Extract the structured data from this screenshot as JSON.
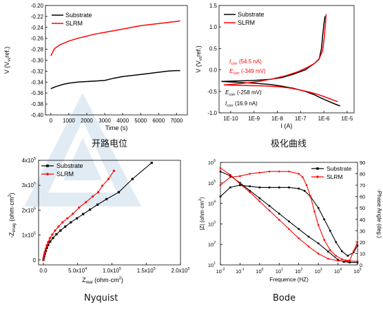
{
  "chart_data": [
    {
      "type": "line",
      "caption": "开路电位",
      "xlabel": "Time (s)",
      "ylabel": [
        "V (V",
        "ref.",
        ")",
        "vs"
      ],
      "xlim": [
        -300,
        7600
      ],
      "ylim": [
        -0.4,
        -0.2
      ],
      "xticks": [
        0,
        1000,
        2000,
        3000,
        4000,
        5000,
        6000,
        7000
      ],
      "yticks": [
        -0.4,
        -0.38,
        -0.36,
        -0.34,
        -0.32,
        -0.3,
        -0.28,
        -0.26,
        -0.24,
        -0.22,
        -0.2
      ],
      "legend_position": "top-left",
      "series": [
        {
          "name": "Substrate",
          "color": "#000000",
          "x": [
            0,
            300,
            700,
            1000,
            1500,
            2000,
            2500,
            3000,
            3500,
            4000,
            4500,
            5000,
            5500,
            6000,
            6500,
            7000,
            7200
          ],
          "y": [
            -0.352,
            -0.348,
            -0.344,
            -0.342,
            -0.34,
            -0.339,
            -0.338,
            -0.337,
            -0.333,
            -0.33,
            -0.328,
            -0.326,
            -0.324,
            -0.322,
            -0.32,
            -0.319,
            -0.319
          ]
        },
        {
          "name": "SLRM",
          "color": "#ff0000",
          "x": [
            0,
            200,
            500,
            1000,
            1500,
            2000,
            2500,
            3000,
            3500,
            4000,
            4500,
            5000,
            5500,
            6000,
            6500,
            7000,
            7200
          ],
          "y": [
            -0.292,
            -0.279,
            -0.272,
            -0.265,
            -0.26,
            -0.256,
            -0.252,
            -0.249,
            -0.246,
            -0.243,
            -0.24,
            -0.237,
            -0.235,
            -0.233,
            -0.231,
            -0.229,
            -0.228
          ]
        }
      ]
    },
    {
      "type": "line",
      "caption": "极化曲线",
      "xlabel": "I (A)",
      "ylabel": [
        "V (V",
        "ref.",
        ")",
        "vs"
      ],
      "xscale": "log",
      "xlim_exp": [
        -10.5,
        -4.7
      ],
      "ylim": [
        -1.0,
        1.5
      ],
      "xticks_exp": [
        -10,
        -9,
        -8,
        -7,
        -6,
        -5
      ],
      "xtick_labels": [
        "1E-10",
        "1E-9",
        "1E-8",
        "1E-7",
        "1E-6",
        "1E-5"
      ],
      "yticks": [
        -1.0,
        -0.5,
        0.0,
        0.5,
        1.0,
        1.5
      ],
      "ytick_labels": [
        "-1.0",
        "-0.5",
        "0.0",
        "0.5",
        "1.0",
        "1.5"
      ],
      "legend_position": "top-left",
      "annotations_red": [
        {
          "sym": "I",
          "sub": "corr",
          "val": " (54.5 nA)"
        },
        {
          "sym": "E",
          "sub": "corr",
          "val": " (-349 mV)"
        }
      ],
      "annotations_black": [
        {
          "sym": "E",
          "sub": "corr",
          "val": " (-258 mV)"
        },
        {
          "sym": "I",
          "sub": "corr",
          "val": " (16.9 nA)"
        }
      ],
      "series": [
        {
          "name": "Substrate",
          "color": "#000000",
          "x_exp": [
            -5.3,
            -5.5,
            -5.8,
            -6.1,
            -6.4,
            -6.8,
            -7.3,
            -7.8,
            -8.3,
            -9.0,
            -10.4,
            -9.0,
            -8.3,
            -7.8,
            -7.3,
            -6.8,
            -6.4,
            -6.2,
            -6.1,
            -6.05,
            -6.0,
            -5.95
          ],
          "y": [
            -0.84,
            -0.8,
            -0.73,
            -0.66,
            -0.58,
            -0.5,
            -0.43,
            -0.38,
            -0.34,
            -0.31,
            -0.27,
            -0.245,
            -0.22,
            -0.18,
            -0.1,
            0.0,
            0.15,
            0.25,
            0.5,
            0.8,
            1.05,
            1.25
          ]
        },
        {
          "name": "SLRM",
          "color": "#ff0000",
          "x_exp": [
            -5.4,
            -5.6,
            -5.9,
            -6.2,
            -6.6,
            -7.0,
            -7.5,
            -8.0,
            -8.7,
            -9.6,
            -10.3,
            -9.6,
            -8.8,
            -8.2,
            -7.6,
            -7.1,
            -6.7,
            -6.4,
            -6.2,
            -6.05,
            -5.98,
            -5.93,
            -5.9
          ],
          "y": [
            -0.74,
            -0.7,
            -0.64,
            -0.58,
            -0.52,
            -0.47,
            -0.42,
            -0.39,
            -0.37,
            -0.36,
            -0.35,
            -0.32,
            -0.27,
            -0.21,
            -0.13,
            -0.04,
            0.06,
            0.15,
            0.26,
            0.45,
            0.75,
            1.05,
            1.3
          ]
        }
      ]
    },
    {
      "type": "scatter",
      "caption": "Nyquist",
      "xlabel_main": "Z",
      "xlabel_sub": "real",
      "xlabel_unit": " (ohm·cm",
      "xlabel_tail": ")",
      "ylabel_main": "-Z",
      "ylabel_sub": "imag",
      "ylabel_unit": " (ohm·cm",
      "ylabel_tail": ")",
      "sup2": "2",
      "xlim": [
        -7000,
        200000
      ],
      "ylim": [
        -20000,
        400000
      ],
      "xticks": [
        0,
        50000,
        100000,
        150000,
        200000
      ],
      "xtick_labels": [
        [
          "0.0",
          ""
        ],
        [
          "5.0x10",
          "4"
        ],
        [
          "1.0x10",
          "5"
        ],
        [
          "1.5x10",
          "5"
        ],
        [
          "2.0x10",
          "5"
        ]
      ],
      "yticks": [
        0,
        100000,
        200000,
        300000,
        400000
      ],
      "ytick_labels": [
        [
          "0",
          ""
        ],
        [
          "1x10",
          "5"
        ],
        [
          "2x10",
          "5"
        ],
        [
          "3x10",
          "5"
        ],
        [
          "4x10",
          "5"
        ]
      ],
      "legend_position": "top-left",
      "series": [
        {
          "name": "Substrate",
          "color": "#000000",
          "marker": "square",
          "x": [
            0,
            500,
            1200,
            2200,
            3500,
            5000,
            7000,
            10000,
            14000,
            19000,
            25000,
            32000,
            40000,
            49000,
            58000,
            68000,
            79000,
            92000,
            110000,
            130000,
            158000
          ],
          "y": [
            0,
            7000,
            15000,
            25000,
            36000,
            48000,
            60000,
            74000,
            88000,
            103000,
            118000,
            134000,
            151000,
            167000,
            184000,
            202000,
            222000,
            244000,
            272000,
            325000,
            390000
          ]
        },
        {
          "name": "SLRM",
          "color": "#ff0000",
          "marker": "circle",
          "x": [
            0,
            500,
            1200,
            2200,
            3500,
            5000,
            7000,
            9500,
            13000,
            17000,
            22000,
            28000,
            35000,
            43000,
            52000,
            62000,
            72000,
            80000,
            86000,
            95000,
            103000
          ],
          "y": [
            0,
            10000,
            20000,
            32000,
            44000,
            58000,
            72000,
            87000,
            102000,
            118000,
            134000,
            151000,
            167000,
            185000,
            210000,
            232000,
            255000,
            272000,
            298000,
            325000,
            358000
          ]
        }
      ]
    },
    {
      "type": "line",
      "caption": "Bode",
      "xlabel": "Frequence (HZ)",
      "ylabel_left": "|Z| (ohm·cm",
      "ylabel_right": "-Phase Angle (deg.)",
      "sup2": "2",
      "xscale": "log",
      "xlim_exp": [
        -2,
        5
      ],
      "xticks_exp": [
        -2,
        -1,
        0,
        1,
        2,
        3,
        4,
        5
      ],
      "ylim_left_exp": [
        1,
        6
      ],
      "yticks_left_exp": [
        1,
        2,
        3,
        4,
        5,
        6
      ],
      "ylim_right": [
        0,
        90
      ],
      "yticks_right": [
        0,
        10,
        20,
        30,
        40,
        50,
        60,
        70,
        80,
        90
      ],
      "legend_position": "top-right",
      "series": [
        {
          "name": "Substrate",
          "color": "#000000",
          "marker": "square",
          "axis": "left",
          "x_exp": [
            -2.0,
            -1.5,
            -1.0,
            -0.5,
            0.0,
            0.5,
            1.0,
            1.5,
            2.0,
            2.5,
            3.0,
            3.5,
            4.0,
            4.3,
            4.6,
            5.0
          ],
          "y_exp": [
            5.55,
            5.35,
            5.0,
            4.62,
            4.25,
            3.88,
            3.5,
            3.12,
            2.75,
            2.38,
            2.05,
            1.65,
            1.25,
            1.15,
            1.12,
            1.12
          ]
        },
        {
          "name": "SLRM",
          "color": "#ff0000",
          "marker": "circle",
          "axis": "left",
          "x_exp": [
            -2.0,
            -1.5,
            -1.0,
            -0.5,
            0.0,
            0.5,
            1.0,
            1.5,
            2.0,
            2.5,
            3.0,
            3.5,
            4.0,
            4.5,
            5.0
          ],
          "y_exp": [
            5.72,
            5.4,
            4.95,
            4.55,
            4.1,
            3.65,
            3.2,
            2.75,
            2.3,
            1.9,
            1.55,
            1.3,
            1.2,
            1.18,
            1.18
          ]
        },
        {
          "name": "Substrate",
          "color": "#000000",
          "marker": "square",
          "axis": "right",
          "x_exp": [
            -2.0,
            -1.5,
            -1.0,
            -0.5,
            0.0,
            0.5,
            1.0,
            1.5,
            2.0,
            2.3,
            2.6,
            3.0,
            3.3,
            3.6,
            3.9,
            4.2,
            4.5,
            4.8,
            5.0
          ],
          "y": [
            60,
            68,
            70,
            69,
            68,
            68,
            68,
            68,
            67,
            65,
            60,
            50,
            40,
            30,
            20,
            12,
            8,
            11,
            17
          ]
        },
        {
          "name": "SLRM",
          "color": "#ff0000",
          "marker": "circle",
          "axis": "right",
          "x_exp": [
            -2.0,
            -1.5,
            -1.0,
            -0.5,
            0.0,
            0.5,
            1.0,
            1.5,
            2.0,
            2.2,
            2.4,
            2.6,
            2.8,
            3.0,
            3.3,
            3.6,
            3.9,
            4.2,
            4.4,
            4.6,
            4.8,
            5.0
          ],
          "y": [
            70,
            77,
            78,
            80,
            81,
            82,
            82,
            82,
            80,
            77,
            70,
            60,
            47,
            35,
            22,
            13,
            8,
            5,
            4,
            4,
            12,
            20
          ]
        }
      ]
    }
  ]
}
